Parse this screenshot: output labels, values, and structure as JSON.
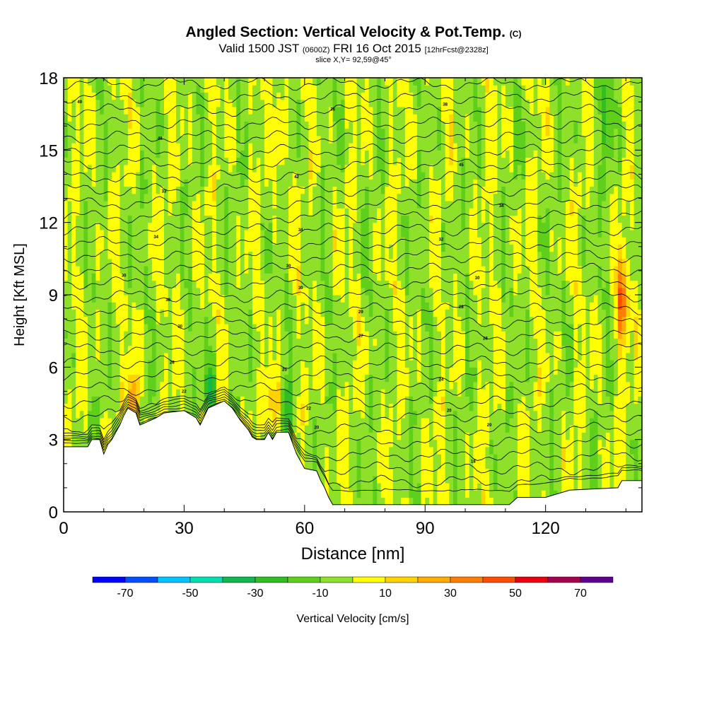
{
  "title": {
    "main": "Angled Section: Vertical Velocity & Pot.Temp.",
    "unit_tag": "(C)",
    "valid_prefix": "Valid 1500 JST",
    "valid_utc": "(0600Z)",
    "valid_date": "FRI 16 Oct 2015",
    "fcst": "[12hrFcst@2328z]",
    "slice": "slice X,Y= 92,59@45°"
  },
  "chart_data": {
    "type": "heatmap",
    "xlabel": "Distance [nm]",
    "ylabel": "Height [Kft MSL]",
    "xlim": [
      0,
      144
    ],
    "ylim": [
      0,
      18
    ],
    "xticks": [
      0,
      30,
      60,
      90,
      120
    ],
    "xtick_labels": [
      "0",
      "30",
      "60",
      "90",
      "120"
    ],
    "yticks": [
      0,
      3,
      6,
      9,
      12,
      15,
      18
    ],
    "ytick_labels": [
      "0",
      "3",
      "6",
      "9",
      "12",
      "15",
      "18"
    ],
    "colorbar": {
      "label": "Vertical Velocity [cm/s]",
      "tick_labels": [
        "-70",
        "-50",
        "-30",
        "-10",
        "10",
        "30",
        "50",
        "70"
      ],
      "tick_values": [
        -70,
        -50,
        -30,
        -10,
        10,
        30,
        50,
        70
      ],
      "bins": [
        -80,
        -70,
        -60,
        -50,
        -40,
        -30,
        -20,
        -10,
        0,
        10,
        20,
        30,
        40,
        50,
        60,
        70,
        80
      ],
      "colors": [
        "#0000ff",
        "#0050ff",
        "#00c4ff",
        "#00dfb0",
        "#10b850",
        "#30be20",
        "#5ed01c",
        "#8ee028",
        "#ffff00",
        "#ffd200",
        "#ffab00",
        "#ff7e00",
        "#ff4d00",
        "#e80010",
        "#a80050",
        "#60008c"
      ]
    },
    "terrain_kft": [
      [
        0,
        2.7
      ],
      [
        6,
        2.7
      ],
      [
        7,
        3.0
      ],
      [
        9,
        3.0
      ],
      [
        10,
        2.4
      ],
      [
        11,
        2.8
      ],
      [
        12,
        3.0
      ],
      [
        13,
        3.3
      ],
      [
        14,
        3.6
      ],
      [
        15,
        4.0
      ],
      [
        16,
        4.3
      ],
      [
        18,
        4.1
      ],
      [
        19,
        3.6
      ],
      [
        23,
        3.9
      ],
      [
        25,
        4.1
      ],
      [
        30,
        4.2
      ],
      [
        33,
        3.9
      ],
      [
        34,
        3.6
      ],
      [
        36,
        4.3
      ],
      [
        40,
        4.6
      ],
      [
        42,
        4.3
      ],
      [
        44,
        3.8
      ],
      [
        46,
        3.4
      ],
      [
        47,
        3.1
      ],
      [
        48,
        3.0
      ],
      [
        50,
        3.0
      ],
      [
        51,
        3.3
      ],
      [
        52,
        3.0
      ],
      [
        53,
        3.3
      ],
      [
        56,
        3.3
      ],
      [
        58,
        2.4
      ],
      [
        60,
        1.8
      ],
      [
        63,
        1.7
      ],
      [
        64,
        1.3
      ],
      [
        65,
        1.0
      ],
      [
        66,
        0.6
      ],
      [
        67,
        0.3
      ],
      [
        70,
        0.3
      ],
      [
        80,
        0.3
      ],
      [
        100,
        0.3
      ],
      [
        111,
        0.3
      ],
      [
        113,
        0.6
      ],
      [
        120,
        0.6
      ],
      [
        126,
        0.9
      ],
      [
        138,
        1.0
      ],
      [
        139,
        1.3
      ],
      [
        144,
        1.3
      ]
    ],
    "theta_labels": [
      {
        "x": 4,
        "y": 17.0,
        "v": "49"
      },
      {
        "x": 24,
        "y": 15.5,
        "v": "48"
      },
      {
        "x": 67,
        "y": 16.7,
        "v": "36"
      },
      {
        "x": 95,
        "y": 16.9,
        "v": "38"
      },
      {
        "x": 99,
        "y": 14.4,
        "v": "45"
      },
      {
        "x": 25,
        "y": 13.3,
        "v": "33"
      },
      {
        "x": 58,
        "y": 13.9,
        "v": "42"
      },
      {
        "x": 109,
        "y": 12.7,
        "v": "34"
      },
      {
        "x": 23,
        "y": 11.4,
        "v": "34"
      },
      {
        "x": 59,
        "y": 11.7,
        "v": "34"
      },
      {
        "x": 94,
        "y": 11.3,
        "v": "32"
      },
      {
        "x": 15,
        "y": 9.8,
        "v": "30"
      },
      {
        "x": 56,
        "y": 10.2,
        "v": "30"
      },
      {
        "x": 103,
        "y": 9.7,
        "v": "30"
      },
      {
        "x": 26,
        "y": 8.8,
        "v": "30"
      },
      {
        "x": 59,
        "y": 9.3,
        "v": "30"
      },
      {
        "x": 99,
        "y": 8.5,
        "v": "28"
      },
      {
        "x": 29,
        "y": 7.7,
        "v": "30"
      },
      {
        "x": 74,
        "y": 8.3,
        "v": "29"
      },
      {
        "x": 105,
        "y": 7.2,
        "v": "26"
      },
      {
        "x": 27,
        "y": 6.2,
        "v": "26"
      },
      {
        "x": 74,
        "y": 7.3,
        "v": "27"
      },
      {
        "x": 55,
        "y": 5.9,
        "v": "25"
      },
      {
        "x": 94,
        "y": 5.5,
        "v": "24"
      },
      {
        "x": 30,
        "y": 5.0,
        "v": "22"
      },
      {
        "x": 61,
        "y": 4.3,
        "v": "22"
      },
      {
        "x": 96,
        "y": 4.2,
        "v": "20"
      },
      {
        "x": 63,
        "y": 3.5,
        "v": "20"
      },
      {
        "x": 106,
        "y": 3.6,
        "v": "20"
      },
      {
        "x": 102,
        "y": 2.1,
        "v": "18"
      }
    ]
  }
}
